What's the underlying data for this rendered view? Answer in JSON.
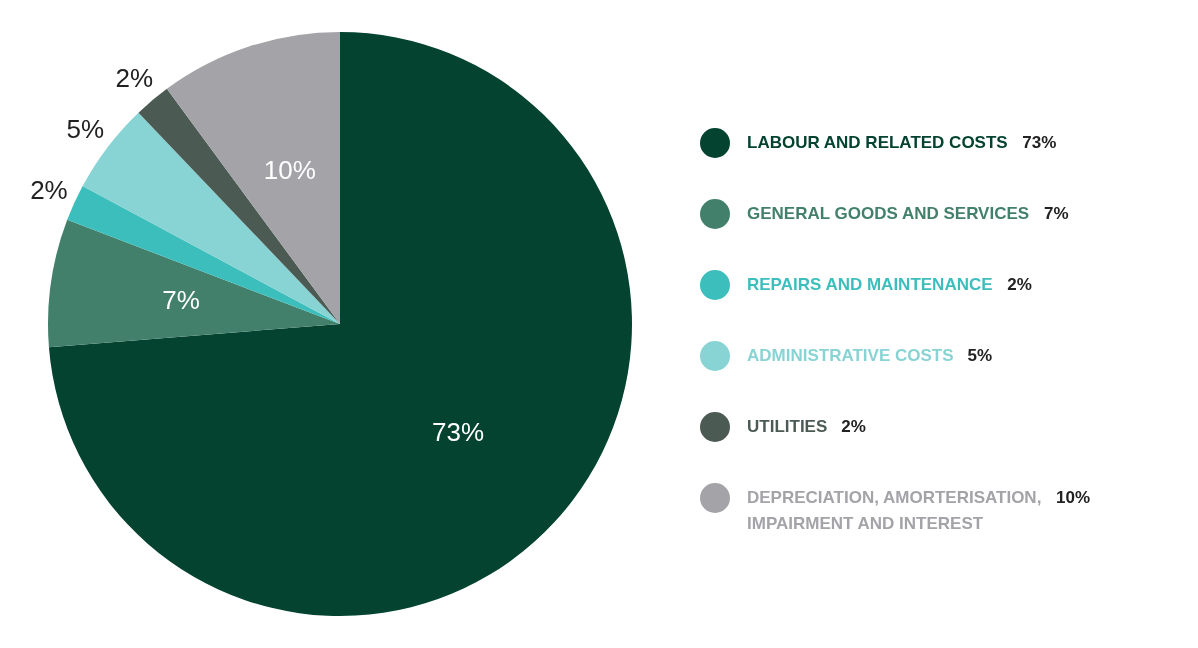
{
  "chart_data": {
    "type": "pie",
    "categories": [
      "LABOUR AND RELATED COSTS",
      "GENERAL GOODS AND SERVICES",
      "REPAIRS AND MAINTENANCE",
      "ADMINISTRATIVE COSTS",
      "UTILITIES",
      "DEPRECIATION, AMORTERISATION, IMPAIRMENT AND INTEREST"
    ],
    "values": [
      73,
      7,
      2,
      5,
      2,
      10
    ],
    "value_labels": [
      "73%",
      "7%",
      "2%",
      "5%",
      "2%",
      "10%"
    ],
    "colors": [
      "#03432f",
      "#43806b",
      "#3cbfbc",
      "#88d3d3",
      "#4b5a53",
      "#a3a3a8"
    ],
    "legend": "right"
  }
}
